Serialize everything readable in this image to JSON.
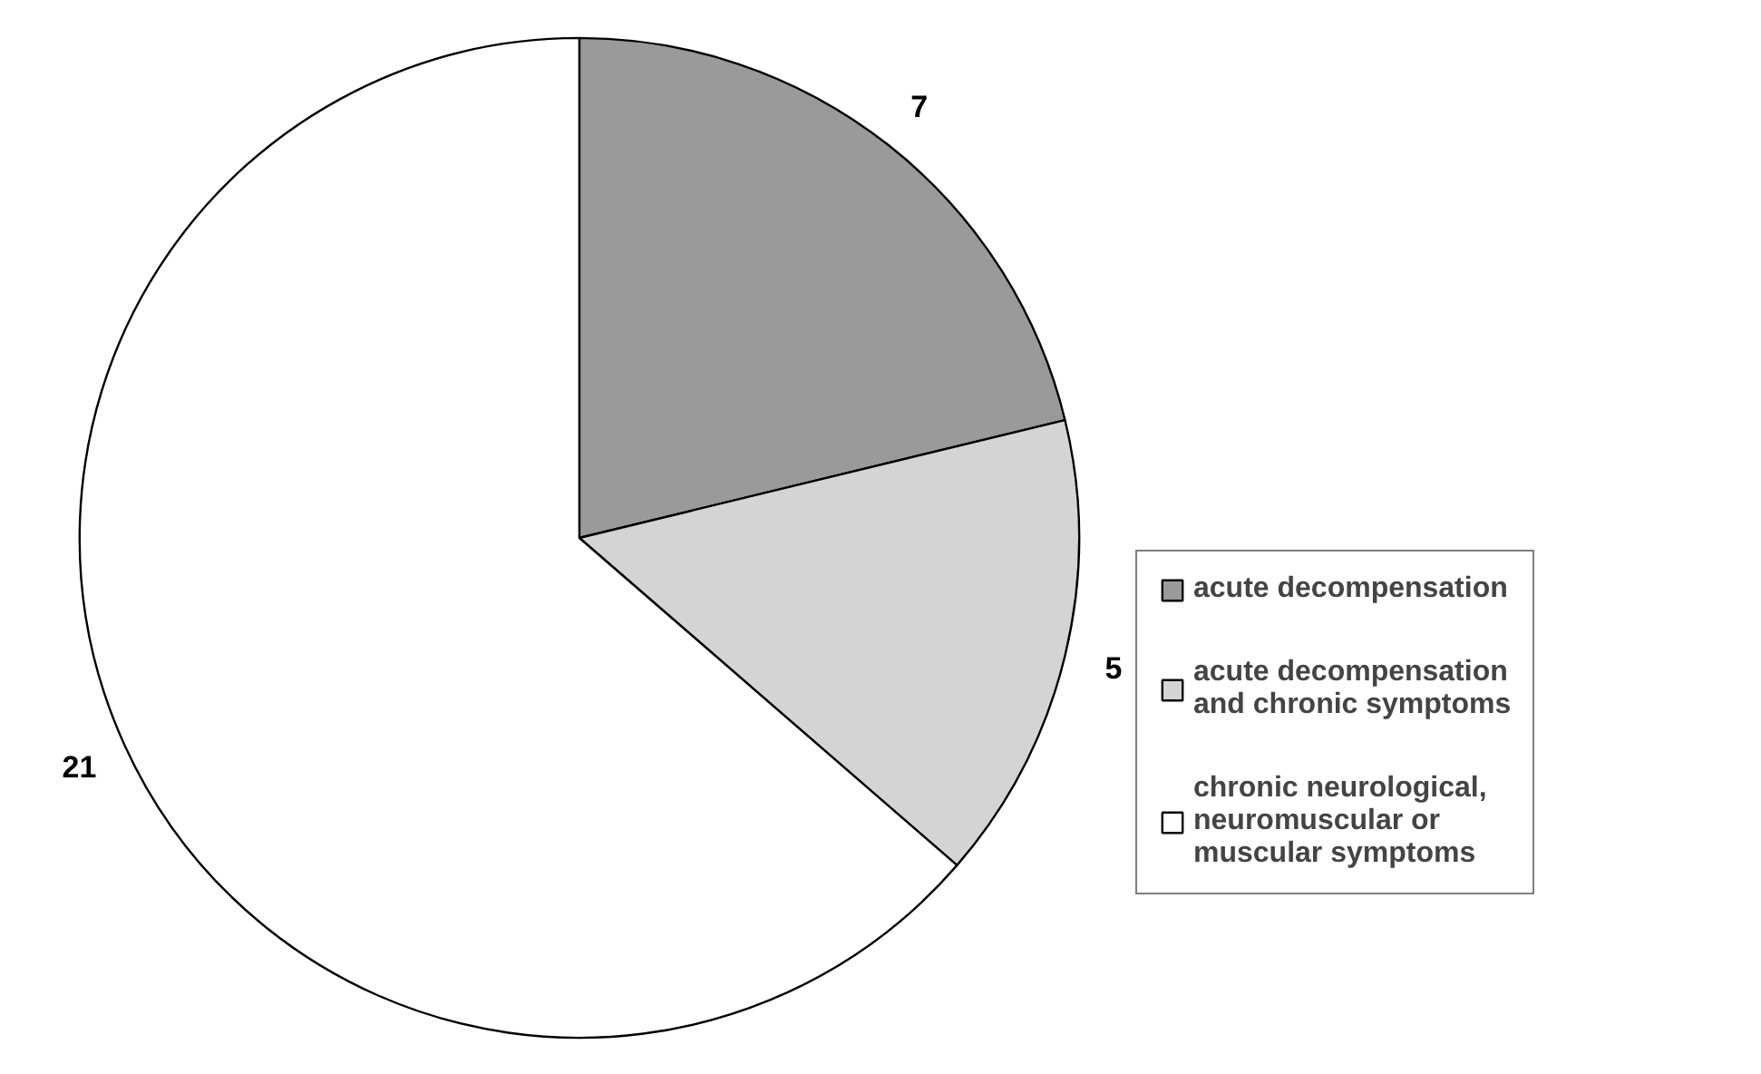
{
  "chart_data": {
    "type": "pie",
    "categories": [
      "acute decompensation",
      "acute decompensation and chronic symptoms",
      "chronic neurological, neuromuscular or muscular symptoms"
    ],
    "values": [
      7,
      5,
      21
    ],
    "colors": [
      "#9a9a9a",
      "#d4d4d4",
      "#ffffff"
    ],
    "data_labels": true,
    "legend": "right"
  }
}
